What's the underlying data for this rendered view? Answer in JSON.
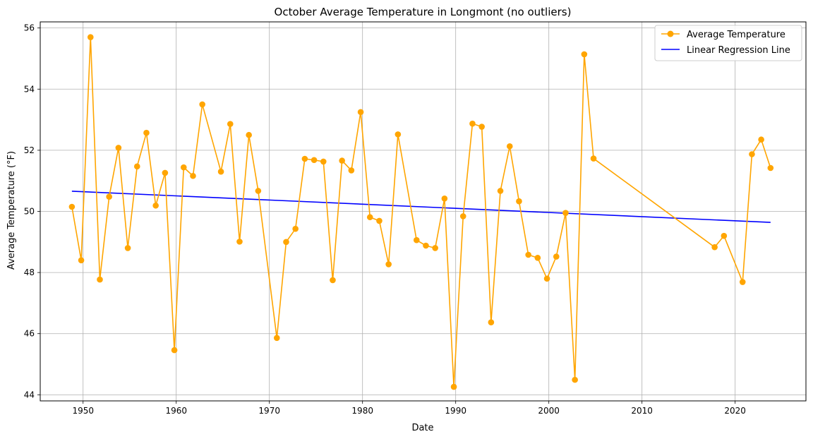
{
  "chart_data": {
    "type": "line",
    "title": "October Average Temperature in Longmont (no outliers)",
    "xlabel": "Date",
    "ylabel": "Average Temperature (°F)",
    "xlim": [
      1945.4,
      2027.6
    ],
    "ylim": [
      43.8,
      56.2
    ],
    "x_ticks": [
      1950,
      1960,
      1970,
      1980,
      1990,
      2000,
      2010,
      2020
    ],
    "y_ticks": [
      44,
      46,
      48,
      50,
      52,
      54,
      56
    ],
    "grid": true,
    "legend_position": "top-right",
    "series": [
      {
        "name": "Average Temperature",
        "kind": "line-markers",
        "color": "#FFA500",
        "x": [
          1948.8,
          1949.8,
          1950.8,
          1951.8,
          1952.8,
          1953.8,
          1954.8,
          1955.8,
          1956.8,
          1957.8,
          1958.8,
          1959.8,
          1960.8,
          1961.8,
          1962.8,
          1964.8,
          1965.8,
          1966.8,
          1967.8,
          1968.8,
          1970.8,
          1971.8,
          1972.8,
          1973.8,
          1974.8,
          1975.8,
          1976.8,
          1977.8,
          1978.8,
          1979.8,
          1980.8,
          1981.8,
          1982.8,
          1983.8,
          1985.8,
          1986.8,
          1987.8,
          1988.8,
          1989.8,
          1990.8,
          1991.8,
          1992.8,
          1993.8,
          1994.8,
          1995.8,
          1996.8,
          1997.8,
          1998.8,
          1999.8,
          2000.8,
          2001.8,
          2002.8,
          2003.8,
          2004.8,
          2017.8,
          2018.8,
          2020.8,
          2021.8,
          2022.8,
          2023.8
        ],
        "y": [
          50.15,
          48.4,
          55.7,
          47.77,
          50.48,
          52.08,
          48.8,
          51.47,
          52.57,
          50.19,
          51.26,
          45.46,
          51.44,
          51.16,
          53.5,
          51.3,
          52.86,
          49.01,
          52.5,
          50.67,
          45.86,
          49.0,
          49.43,
          51.72,
          51.68,
          51.63,
          47.75,
          51.66,
          51.34,
          53.25,
          49.81,
          49.69,
          48.27,
          52.52,
          49.06,
          48.88,
          48.8,
          50.42,
          44.26,
          49.84,
          52.87,
          52.77,
          46.37,
          50.67,
          52.13,
          50.33,
          48.58,
          48.48,
          47.8,
          48.52,
          49.95,
          44.49,
          55.14,
          51.73,
          48.83,
          49.2,
          47.69,
          51.87,
          52.35,
          51.42
        ]
      },
      {
        "name": "Linear Regression Line",
        "kind": "line",
        "color": "#0000FF",
        "x": [
          1948.8,
          2023.8
        ],
        "y": [
          50.66,
          49.64
        ]
      }
    ]
  }
}
